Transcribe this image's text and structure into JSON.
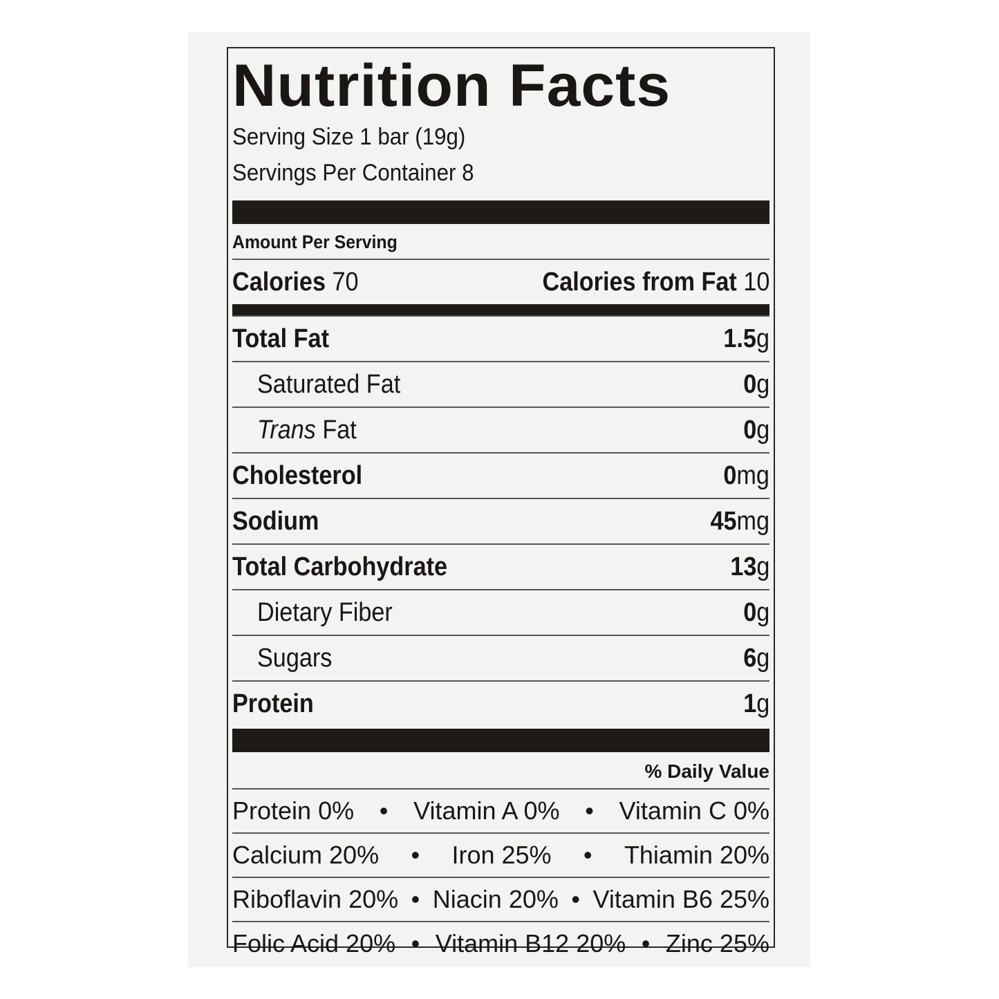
{
  "title": "Nutrition Facts",
  "serving_size": "Serving Size 1 bar (19g)",
  "servings_per_container": "Servings Per Container 8",
  "amount_per_serving": "Amount Per Serving",
  "calories": {
    "label": "Calories",
    "value": "70",
    "from_fat_label": "Calories from Fat",
    "from_fat_value": "10"
  },
  "nutrients": [
    {
      "label": "Total Fat",
      "amount": "1.5",
      "unit": "g",
      "bold": true,
      "indent": false
    },
    {
      "label": "Saturated Fat",
      "amount": "0",
      "unit": "g",
      "bold": false,
      "indent": true
    },
    {
      "label": "Trans",
      "label2": " Fat",
      "amount": "0",
      "unit": "g",
      "bold": false,
      "indent": true
    },
    {
      "label": "Cholesterol",
      "amount": "0",
      "unit": "mg",
      "bold": true,
      "indent": false
    },
    {
      "label": "Sodium",
      "amount": "45",
      "unit": "mg",
      "bold": true,
      "indent": false
    },
    {
      "label": "Total Carbohydrate",
      "amount": "13",
      "unit": "g",
      "bold": true,
      "indent": false
    },
    {
      "label": "Dietary Fiber",
      "amount": "0",
      "unit": "g",
      "bold": false,
      "indent": true
    },
    {
      "label": "Sugars",
      "amount": "6",
      "unit": "g",
      "bold": false,
      "indent": true
    },
    {
      "label": "Protein",
      "amount": "1",
      "unit": "g",
      "bold": true,
      "indent": false
    }
  ],
  "daily_value_header": "% Daily Value",
  "vitamin_rows": [
    [
      "Protein 0%",
      "Vitamin A 0%",
      "Vitamin C 0%"
    ],
    [
      "Calcium 20%",
      "Iron 25%",
      "Thiamin 20%"
    ],
    [
      "Riboflavin 20%",
      "Niacin 20%",
      "Vitamin B6 25%"
    ],
    [
      "Folic Acid 20%",
      "Vitamin B12 20%",
      "Zinc 25%"
    ]
  ],
  "separator": "•"
}
